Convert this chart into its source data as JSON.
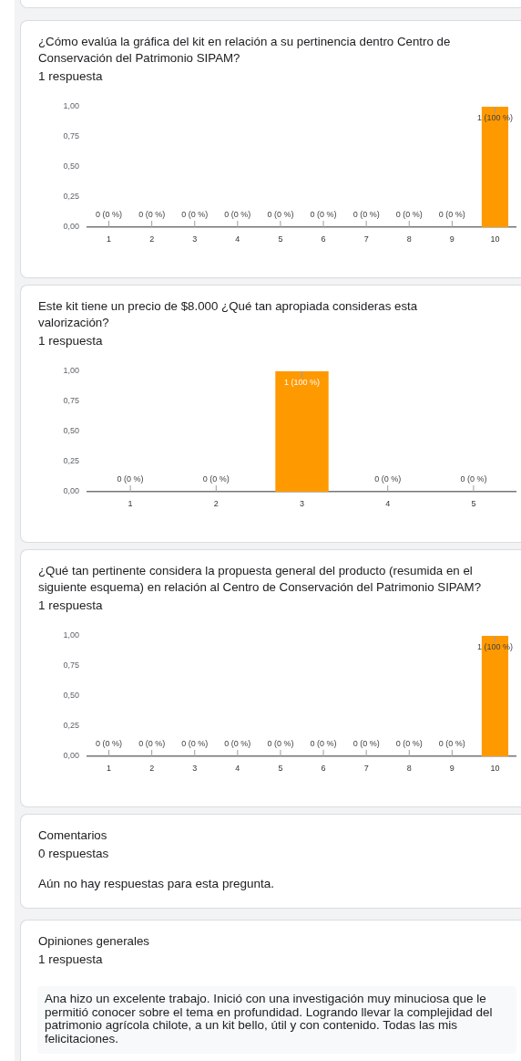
{
  "chart_data": [
    {
      "type": "bar",
      "title": "¿Cómo evalúa la gráfica del kit en relación a su pertinencia dentro Centro de Conservación del Patrimonio SIPAM?",
      "subtitle": "1 respuesta",
      "categories": [
        "1",
        "2",
        "3",
        "4",
        "5",
        "6",
        "7",
        "8",
        "9",
        "10"
      ],
      "values": [
        0,
        0,
        0,
        0,
        0,
        0,
        0,
        0,
        0,
        1
      ],
      "color": "#ff9900",
      "value_labels": [
        "0 (0 %)",
        "0 (0 %)",
        "0 (0 %)",
        "0 (0 %)",
        "0 (0 %)",
        "0 (0 %)",
        "0 (0 %)",
        "0 (0 %)",
        "0 (0 %)",
        "1 (100 %)"
      ],
      "ylim": [
        0,
        1
      ],
      "yticks": [
        {
          "value": 0,
          "label": "0,00"
        },
        {
          "value": 0.25,
          "label": "0,25"
        },
        {
          "value": 0.5,
          "label": "0,50"
        },
        {
          "value": 0.75,
          "label": "0,75"
        },
        {
          "value": 1,
          "label": "1,00"
        }
      ]
    },
    {
      "type": "bar",
      "title": "Este kit tiene un precio de $8.000 ¿Qué tan apropiada consideras esta valorización?",
      "subtitle": "1 respuesta",
      "categories": [
        "1",
        "2",
        "3",
        "4",
        "5"
      ],
      "values": [
        0,
        0,
        1,
        0,
        0
      ],
      "color": "#ff9900",
      "value_labels": [
        "0 (0 %)",
        "0 (0 %)",
        "1 (100 %)",
        "0 (0 %)",
        "0 (0 %)"
      ],
      "ylim": [
        0,
        1
      ],
      "yticks": [
        {
          "value": 0,
          "label": "0,00"
        },
        {
          "value": 0.25,
          "label": "0,25"
        },
        {
          "value": 0.5,
          "label": "0,50"
        },
        {
          "value": 0.75,
          "label": "0,75"
        },
        {
          "value": 1,
          "label": "1,00"
        }
      ]
    },
    {
      "type": "bar",
      "title": "¿Qué tan pertinente considera la propuesta general del producto (resumida en el siguiente esquema) en relación al Centro de Conservación del Patrimonio SIPAM?",
      "subtitle": "1 respuesta",
      "categories": [
        "1",
        "2",
        "3",
        "4",
        "5",
        "6",
        "7",
        "8",
        "9",
        "10"
      ],
      "values": [
        0,
        0,
        0,
        0,
        0,
        0,
        0,
        0,
        0,
        1
      ],
      "color": "#ff9900",
      "value_labels": [
        "0 (0 %)",
        "0 (0 %)",
        "0 (0 %)",
        "0 (0 %)",
        "0 (0 %)",
        "0 (0 %)",
        "0 (0 %)",
        "0 (0 %)",
        "0 (0 %)",
        "1 (100 %)"
      ],
      "ylim": [
        0,
        1
      ],
      "yticks": [
        {
          "value": 0,
          "label": "0,00"
        },
        {
          "value": 0.25,
          "label": "0,25"
        },
        {
          "value": 0.5,
          "label": "0,50"
        },
        {
          "value": 0.75,
          "label": "0,75"
        },
        {
          "value": 1,
          "label": "1,00"
        }
      ]
    },
    {
      "type": "other",
      "title": "Comentarios",
      "subtitle": "0 respuestas",
      "annotations": [
        "Aún no hay respuestas para esta pregunta."
      ]
    },
    {
      "type": "other",
      "title": "Opiniones generales",
      "subtitle": "1 respuesta",
      "annotations": [
        "Ana hizo un excelente trabajo. Inició con una investigación muy minuciosa que le permitió conocer sobre el tema en profundidad. Logrando llevar la complejidad del patrimonio agrícola chilote, a un kit bello, útil y con contenido. Todas las mis felicitaciones."
      ]
    }
  ]
}
